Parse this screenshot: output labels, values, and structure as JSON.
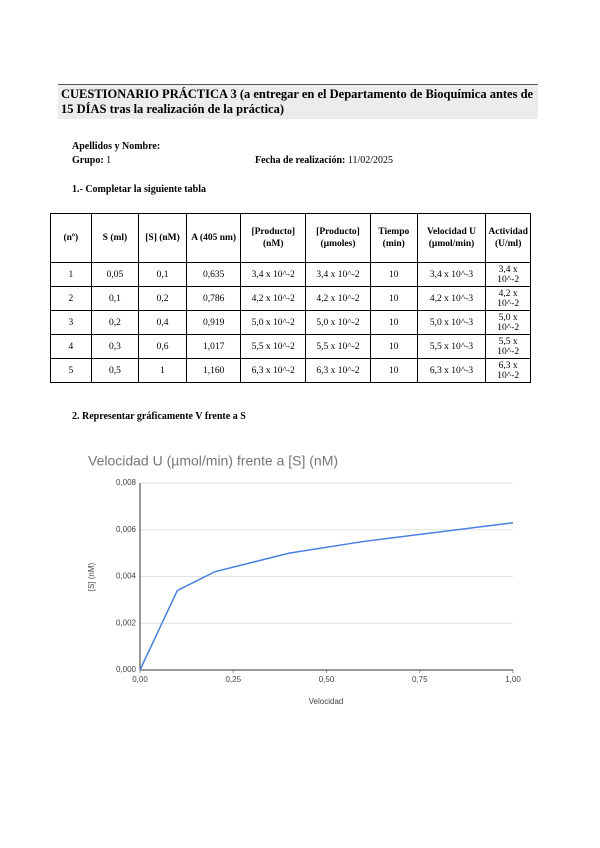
{
  "header": {
    "title": "CUESTIONARIO PRÁCTICA 3 (a entregar en el Departamento de Bioquímica antes de 15 DÍAS tras la realización de la práctica)"
  },
  "fields": {
    "name_label": "Apellidos y Nombre:",
    "group_label": "Grupo:",
    "group_value": "1",
    "date_label": "Fecha de realización:",
    "date_value": "11/02/2025"
  },
  "section1": {
    "title": "1.- Completar la siguiente tabla"
  },
  "table": {
    "headers": [
      "(nº)",
      "S (ml)",
      "[S] (nM)",
      "A (405 nm)",
      "[Producto] (nM)",
      "[Producto] (µmoles)",
      "Tiempo (min)",
      "Velocidad U (µmol/min)",
      "Actividad (U/ml)"
    ],
    "rows": [
      [
        "1",
        "0,05",
        "0,1",
        "0,635",
        "3,4 x 10^-2",
        "3,4 x 10^-2",
        "10",
        "3,4 x 10^-3",
        "3,4 x 10^-2"
      ],
      [
        "2",
        "0,1",
        "0,2",
        "0,786",
        "4,2 x 10^-2",
        "4,2 x 10^-2",
        "10",
        "4,2 x 10^-3",
        "4,2 x 10^-2"
      ],
      [
        "3",
        "0,2",
        "0,4",
        "0,919",
        "5,0 x 10^-2",
        "5,0 x 10^-2",
        "10",
        "5,0 x 10^-3",
        "5,0 x 10^-2"
      ],
      [
        "4",
        "0,3",
        "0,6",
        "1,017",
        "5,5 x 10^-2",
        "5,5 x 10^-2",
        "10",
        "5,5 x 10^-3",
        "5,5 x 10^-2"
      ],
      [
        "5",
        "0,5",
        "1",
        "1,160",
        "6,3 x 10^-2",
        "6,3 x 10^-2",
        "10",
        "6,3 x 10^-3",
        "6,3 x 10^-2"
      ]
    ]
  },
  "section2": {
    "title": "2. Representar gráficamente V frente a S"
  },
  "chart_data": {
    "type": "line",
    "title": "Velocidad U (µmol/min) frente a [S] (nM)",
    "x_label": "Velocidad",
    "y_label": "[S] (nM)",
    "x": [
      0,
      0.1,
      0.2,
      0.4,
      0.6,
      1
    ],
    "values": [
      0,
      0.0034,
      0.0042,
      0.005,
      0.0055,
      0.0063
    ],
    "color": "#4a7fe0",
    "grid": true,
    "xlim": [
      0,
      1
    ],
    "xticks": [
      {
        "value": 0,
        "label": "0,00"
      },
      {
        "value": 0.25,
        "label": "0,25"
      },
      {
        "value": 0.5,
        "label": "0,50"
      },
      {
        "value": 0.75,
        "label": "0,75"
      },
      {
        "value": 1,
        "label": "1,00"
      }
    ],
    "ylim": [
      0,
      0.008
    ],
    "yticks": [
      {
        "value": 0,
        "label": "0,000"
      },
      {
        "value": 0.002,
        "label": "0,002"
      },
      {
        "value": 0.004,
        "label": "0,004"
      },
      {
        "value": 0.006,
        "label": "0,006"
      },
      {
        "value": 0.008,
        "label": "0,008"
      }
    ]
  }
}
